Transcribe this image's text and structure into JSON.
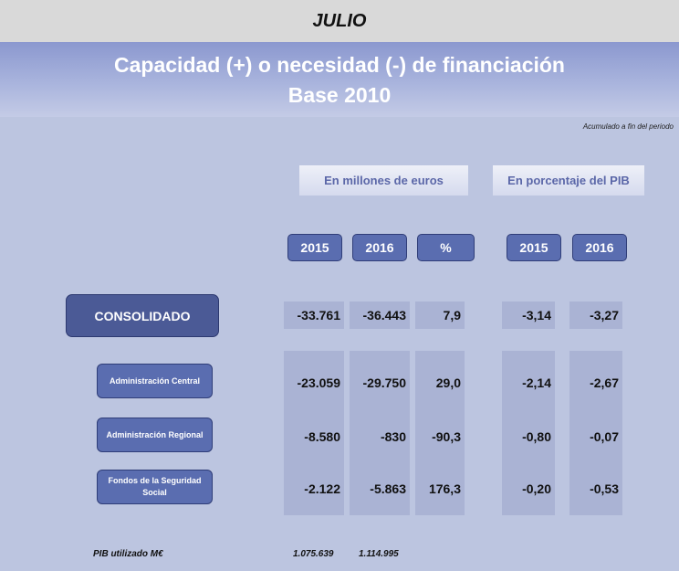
{
  "month": "JULIO",
  "title_line1": "Capacidad (+) o necesidad (-) de financiación",
  "title_line2": "Base 2010",
  "note": "Acumulado a fin del periodo",
  "groups": {
    "millones": "En millones de euros",
    "pib_pct": "En porcentaje del PIB"
  },
  "headers": [
    "2015",
    "2016",
    "%",
    "2015",
    "2016"
  ],
  "consolidado": {
    "label": "CONSOLIDADO",
    "values": [
      "-33.761",
      "-36.443",
      "7,9",
      "-3,14",
      "-3,27"
    ]
  },
  "rows": [
    {
      "label": "Administración Central",
      "values": [
        "-23.059",
        "-29.750",
        "29,0",
        "-2,14",
        "-2,67"
      ]
    },
    {
      "label": "Administración Regional",
      "values": [
        "-8.580",
        "-830",
        "-90,3",
        "-0,80",
        "-0,07"
      ]
    },
    {
      "label": "Fondos de la Seguridad Social",
      "values": [
        "-2.122",
        "-5.863",
        "176,3",
        "-0,20",
        "-0,53"
      ]
    }
  ],
  "pib": {
    "label": "PIB utilizado M€",
    "values": [
      "1.075.639",
      "1.114.995"
    ]
  }
}
